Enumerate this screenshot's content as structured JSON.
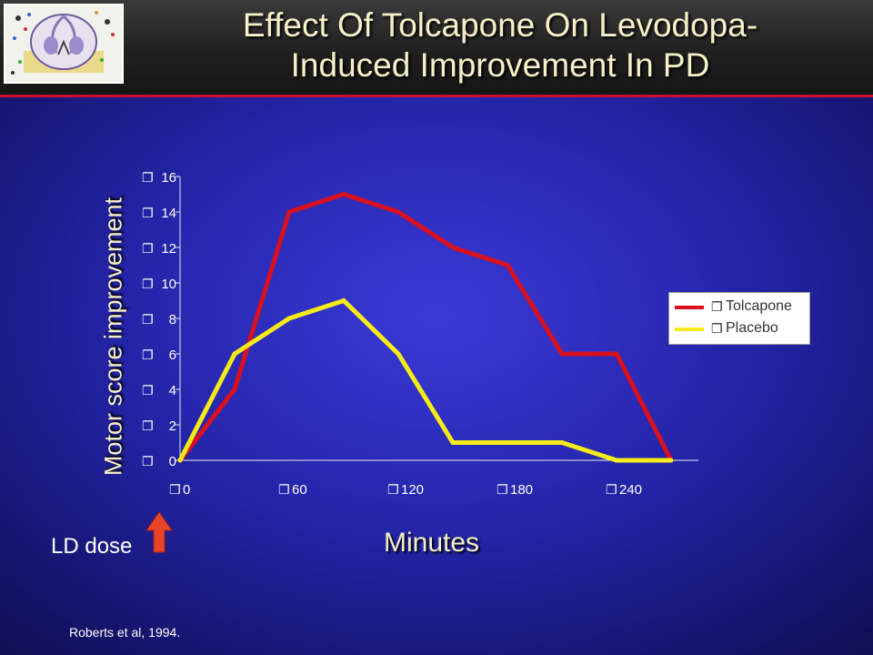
{
  "header": {
    "title_line1": "Effect Of Tolcapone On Levodopa-",
    "title_line2": "Induced  Improvement In PD"
  },
  "logo": {
    "icon": "brain-section-icon"
  },
  "annotations": {
    "ld_dose": "LD dose",
    "citation": "Roberts et al, 1994."
  },
  "colors": {
    "tolcapone": "#d9101e",
    "placebo": "#f5eb17",
    "text_cream": "#f5f0c8",
    "arrow": "#e8442a"
  },
  "tick_icon": "bullet-marker-icon",
  "chart_data": {
    "type": "line",
    "xlabel": "Minutes",
    "ylabel": "Motor score improvement",
    "x": [
      0,
      30,
      60,
      90,
      120,
      150,
      180,
      210,
      240,
      270
    ],
    "x_ticks": [
      0,
      60,
      120,
      180,
      240
    ],
    "y_ticks": [
      0,
      2,
      4,
      6,
      8,
      10,
      12,
      14,
      16
    ],
    "xlim": [
      0,
      285
    ],
    "ylim": [
      0,
      16
    ],
    "grid": false,
    "legend": "right",
    "series": [
      {
        "name": "Tolcapone",
        "values": [
          0,
          4,
          14,
          15,
          14,
          12,
          11,
          6,
          6,
          0
        ]
      },
      {
        "name": "Placebo",
        "values": [
          0,
          6,
          8,
          9,
          6,
          1,
          1,
          1,
          0,
          0
        ]
      }
    ]
  }
}
